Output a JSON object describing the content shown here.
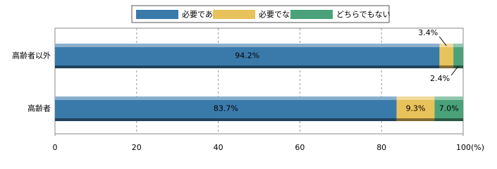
{
  "chart_data": {
    "type": "stacked-bar-horizontal",
    "categories": [
      "高齢者以外",
      "高齢者"
    ],
    "series": [
      {
        "name": "必要である",
        "color": "#3a7aab",
        "values": [
          94.2,
          83.7
        ],
        "value_labels": [
          "94.2%",
          "83.7%"
        ]
      },
      {
        "name": "必要でない",
        "color": "#e8c25a",
        "values": [
          3.4,
          9.3
        ],
        "value_labels": [
          "3.4%",
          "9.3%"
        ]
      },
      {
        "name": "どちらでもない",
        "color": "#4aa27a",
        "values": [
          2.4,
          7.0
        ],
        "value_labels": [
          "2.4%",
          "7.0%"
        ]
      }
    ],
    "xlim": [
      0,
      100
    ],
    "xticks": [
      0,
      20,
      40,
      60,
      80,
      {
        "value": 100,
        "label": "100(%)"
      }
    ],
    "grid": true
  }
}
